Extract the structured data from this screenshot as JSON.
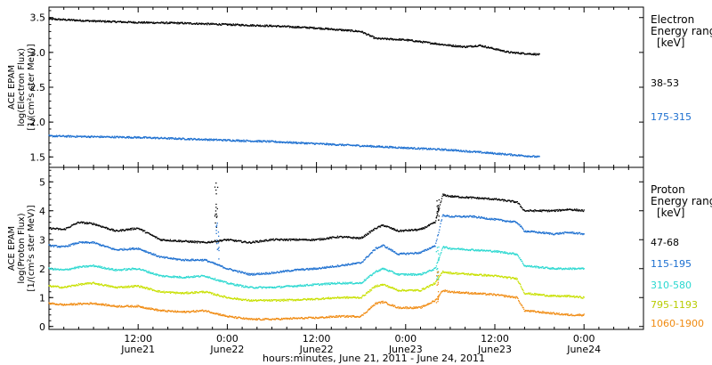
{
  "chart_data": [
    {
      "type": "scatter",
      "panel": "electron",
      "ylabel": [
        "ACE EPAM",
        "log(Electron Flux)",
        "[1/(cm²s ster MeV)]"
      ],
      "ylim": [
        1.35,
        3.65
      ],
      "yticks": [
        "1.5",
        "2.0",
        "2.5",
        "3.0",
        "3.5"
      ],
      "ytick_values": [
        1.5,
        2.0,
        2.5,
        3.0,
        3.5
      ],
      "xlim": [
        0,
        80
      ],
      "legend": {
        "title": [
          "Electron",
          "Energy ranges",
          "[keV]"
        ],
        "entries": [
          "38-53",
          "175-315"
        ]
      },
      "series": [
        {
          "name": "38-53",
          "color": "#000000",
          "x": [
            0,
            6,
            12,
            18,
            24,
            30,
            36,
            42,
            44,
            48,
            54,
            56,
            58,
            60,
            62,
            66
          ],
          "y": [
            3.48,
            3.45,
            3.43,
            3.42,
            3.4,
            3.38,
            3.35,
            3.3,
            3.2,
            3.18,
            3.1,
            3.08,
            3.1,
            3.05,
            3.0,
            2.97
          ]
        },
        {
          "name": "175-315",
          "color": "#1c6fd0",
          "x": [
            0,
            6,
            12,
            18,
            24,
            30,
            36,
            42,
            48,
            54,
            60,
            66
          ],
          "y": [
            1.8,
            1.79,
            1.78,
            1.76,
            1.74,
            1.72,
            1.69,
            1.66,
            1.63,
            1.6,
            1.55,
            1.5
          ]
        }
      ]
    },
    {
      "type": "scatter",
      "panel": "proton",
      "ylabel": [
        "ACE EPAM",
        "log(Proton Flux)",
        "[1/(cm²s ster MeV)]"
      ],
      "ylim": [
        -0.1,
        5.5
      ],
      "yticks": [
        "0",
        "1",
        "2",
        "3",
        "4",
        "5"
      ],
      "ytick_values": [
        0,
        1,
        2,
        3,
        4,
        5
      ],
      "xlim": [
        0,
        80
      ],
      "xticks": [
        {
          "x": 12,
          "time": "12:00",
          "date": "June21"
        },
        {
          "x": 24,
          "time": "0:00",
          "date": "June22"
        },
        {
          "x": 36,
          "time": "12:00",
          "date": "June22"
        },
        {
          "x": 48,
          "time": "0:00",
          "date": "June23"
        },
        {
          "x": 60,
          "time": "12:00",
          "date": "June23"
        },
        {
          "x": 72,
          "time": "0:00",
          "date": "June24"
        }
      ],
      "xlabel": "hours:minutes, June 21, 2011 - June 24, 2011",
      "legend": {
        "title": [
          "Proton",
          "Energy ranges",
          "[keV]"
        ],
        "entries": [
          "47-68",
          "115-195",
          "310-580",
          "795-1193",
          "1060-1900"
        ]
      },
      "series": [
        {
          "name": "47-68",
          "color": "#000000",
          "x": [
            0,
            2,
            4,
            6,
            9,
            12,
            15,
            18,
            21,
            24,
            27,
            30,
            33,
            36,
            39,
            42,
            44,
            45,
            47,
            50,
            52,
            53,
            54,
            57,
            60,
            63,
            64,
            66,
            68,
            70,
            72
          ],
          "y": [
            3.4,
            3.35,
            3.6,
            3.55,
            3.3,
            3.4,
            3.0,
            2.95,
            2.9,
            3.0,
            2.9,
            3.0,
            3.0,
            3.0,
            3.1,
            3.05,
            3.4,
            3.5,
            3.3,
            3.35,
            3.6,
            4.55,
            4.5,
            4.45,
            4.4,
            4.3,
            4.0,
            4.0,
            4.0,
            4.05,
            4.0
          ]
        },
        {
          "name": "115-195",
          "color": "#1c6fd0",
          "x": [
            0,
            2,
            4,
            6,
            9,
            12,
            15,
            18,
            21,
            24,
            27,
            30,
            33,
            36,
            39,
            42,
            44,
            45,
            47,
            50,
            52,
            53,
            54,
            57,
            60,
            63,
            64,
            66,
            68,
            70,
            72
          ],
          "y": [
            2.8,
            2.75,
            2.9,
            2.9,
            2.65,
            2.7,
            2.4,
            2.3,
            2.3,
            2.0,
            1.8,
            1.85,
            1.95,
            2.0,
            2.1,
            2.2,
            2.7,
            2.8,
            2.5,
            2.55,
            2.8,
            3.85,
            3.8,
            3.8,
            3.7,
            3.6,
            3.3,
            3.25,
            3.2,
            3.25,
            3.2
          ]
        },
        {
          "name": "310-580",
          "color": "#2ad8d0",
          "x": [
            0,
            2,
            4,
            6,
            9,
            12,
            15,
            18,
            21,
            24,
            27,
            30,
            33,
            36,
            39,
            42,
            44,
            45,
            47,
            50,
            52,
            53,
            54,
            57,
            60,
            63,
            64,
            66,
            68,
            70,
            72
          ],
          "y": [
            2.0,
            1.95,
            2.05,
            2.1,
            1.95,
            2.0,
            1.75,
            1.7,
            1.75,
            1.5,
            1.35,
            1.35,
            1.4,
            1.45,
            1.5,
            1.5,
            1.9,
            2.0,
            1.8,
            1.8,
            2.0,
            2.75,
            2.7,
            2.65,
            2.6,
            2.5,
            2.1,
            2.05,
            2.0,
            2.0,
            2.0
          ]
        },
        {
          "name": "795-1193",
          "color": "#c8e000",
          "x": [
            0,
            2,
            4,
            6,
            9,
            12,
            15,
            18,
            21,
            24,
            27,
            30,
            33,
            36,
            39,
            42,
            44,
            45,
            47,
            50,
            52,
            53,
            54,
            57,
            60,
            63,
            64,
            66,
            68,
            70,
            72
          ],
          "y": [
            1.4,
            1.35,
            1.45,
            1.5,
            1.35,
            1.4,
            1.2,
            1.15,
            1.2,
            1.0,
            0.9,
            0.9,
            0.92,
            0.95,
            1.0,
            1.0,
            1.4,
            1.45,
            1.25,
            1.25,
            1.5,
            1.9,
            1.85,
            1.8,
            1.75,
            1.65,
            1.15,
            1.1,
            1.05,
            1.05,
            1.0
          ]
        },
        {
          "name": "1060-1900",
          "color": "#f08a10",
          "x": [
            0,
            2,
            4,
            6,
            9,
            12,
            15,
            18,
            21,
            24,
            27,
            30,
            33,
            36,
            39,
            42,
            44,
            45,
            47,
            50,
            52,
            53,
            54,
            57,
            60,
            63,
            64,
            66,
            68,
            70,
            72
          ],
          "y": [
            0.8,
            0.75,
            0.78,
            0.8,
            0.7,
            0.7,
            0.55,
            0.5,
            0.55,
            0.35,
            0.25,
            0.25,
            0.28,
            0.3,
            0.35,
            0.35,
            0.8,
            0.85,
            0.65,
            0.65,
            0.9,
            1.25,
            1.2,
            1.15,
            1.1,
            1.0,
            0.55,
            0.5,
            0.45,
            0.4,
            0.4
          ]
        }
      ]
    }
  ]
}
